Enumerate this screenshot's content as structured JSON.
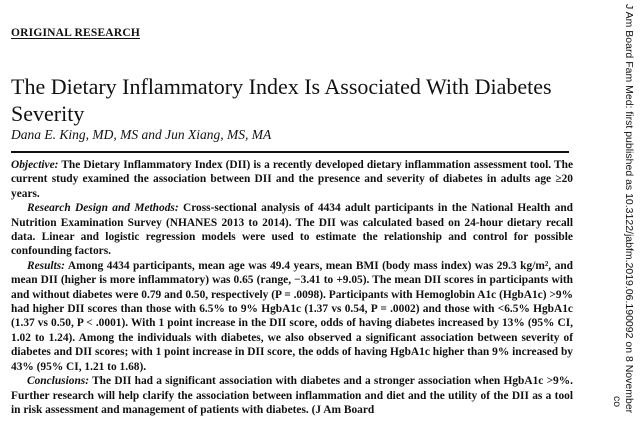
{
  "header": {
    "section_label": "ORIGINAL RESEARCH"
  },
  "article": {
    "title": "The Dietary Inflammatory Index Is Associated With Diabetes Severity",
    "authors": "Dana E. King, MD, MS and Jun Xiang, MS, MA"
  },
  "abstract": {
    "objective_head": "Objective:",
    "objective_text": " The Dietary Inflammatory Index (DII) is a recently developed dietary inflammation assessment tool. The current study examined the association between DII and the presence and severity of diabetes in adults age ≥20 years.",
    "methods_head": "Research Design and Methods:",
    "methods_text": " Cross-sectional analysis of 4434 adult participants in the National Health and Nutrition Examination Survey (NHANES 2013 to 2014). The DII was calculated based on 24-hour dietary recall data. Linear and logistic regression models were used to estimate the relationship and control for possible confounding factors.",
    "results_head": "Results:",
    "results_text": " Among 4434 participants, mean age was 49.4 years, mean BMI (body mass index) was 29.3 kg/m², and mean DII (higher is more inflammatory) was 0.65 (range, −3.41 to +9.05). The mean DII scores in participants with and without diabetes were 0.79 and 0.50, respectively (P = .0098). Participants with Hemoglobin A1c (HgbA1c) >9% had higher DII scores than those with 6.5% to 9% HgbA1c (1.37 vs 0.54, P = .0002) and those with <6.5% HgbA1c (1.37 vs 0.50, P < .0001). With 1 point increase in the DII score, odds of having diabetes increased by 13% (95% CI, 1.02 to 1.24). Among the individuals with diabetes, we also observed a significant association between severity of diabetes and DII scores; with 1 point increase in DII score, the odds of having HgbA1c higher than 9% increased by 43% (95% CI, 1.21 to 1.68).",
    "conclusions_head": "Conclusions:",
    "conclusions_text": " The DII had a significant association with diabetes and a stronger association when HgbA1c >9%. Further research will help clarify the association between inflammation and diet and the utility of the DII as a tool in risk assessment and management of patients with diabetes. (J Am Board"
  },
  "sidebar": {
    "line1": "J Am Board Fam Med: first published as 10.3122/jabfm.2019.06.190092 on 8 November",
    "line2": "co"
  }
}
